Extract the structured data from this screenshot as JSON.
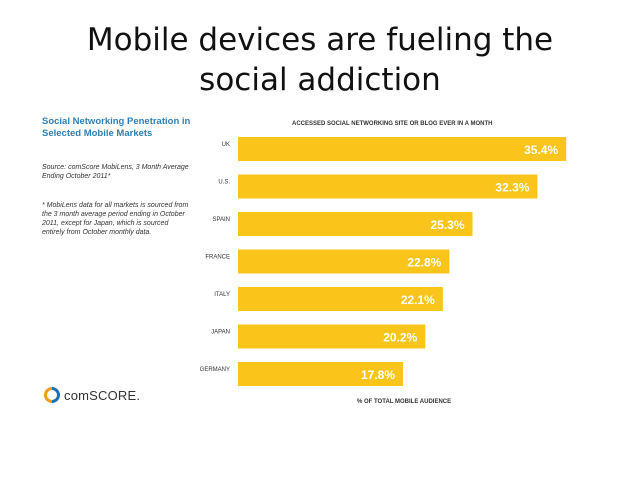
{
  "slide": {
    "title": "Mobile devices are fueling the social addiction"
  },
  "panel": {
    "title": "Social Networking Penetration in Selected Mobile Markets",
    "source": "Source: comScore MobiLens, 3 Month Average Ending October 2011*",
    "footnote": "* MobiLens data for all markets is sourced from the 3 month average period ending in October 2011, except for Japan, which is sourced entirely from October monthly data.",
    "logo_text": "comSCORE."
  },
  "colors": {
    "bar": "#F9C51A",
    "title_blue": "#2E7FB8",
    "logo_orange": "#F39C12",
    "logo_blue": "#1F6FB2"
  },
  "chart_data": {
    "type": "bar",
    "orientation": "horizontal",
    "header": "ACCESSED SOCIAL NETWORKING SITE OR BLOG EVER IN A MONTH",
    "footer": "% OF TOTAL MOBILE AUDIENCE",
    "categories": [
      "UK",
      "U.S.",
      "SPAIN",
      "FRANCE",
      "ITALY",
      "JAPAN",
      "GERMANY"
    ],
    "values": [
      35.4,
      32.3,
      25.3,
      22.8,
      22.1,
      20.2,
      17.8
    ],
    "value_labels": [
      "35.4%",
      "32.3%",
      "25.3%",
      "22.8%",
      "22.1%",
      "20.2%",
      "17.8%"
    ],
    "xlim": [
      0,
      37
    ]
  }
}
